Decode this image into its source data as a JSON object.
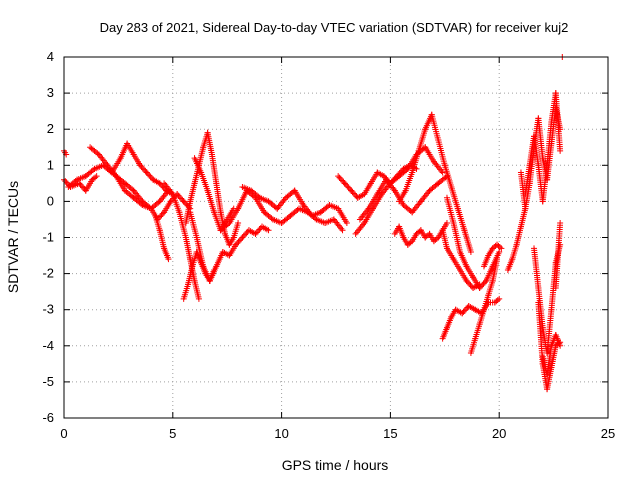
{
  "chart_data": {
    "type": "scatter",
    "title": "Day 283 of 2021, Sidereal Day-to-day VTEC variation (SDTVAR) for receiver kuj2",
    "xlabel": "GPS time / hours",
    "ylabel": "SDTVAR / TECUs",
    "xlim": [
      0,
      25
    ],
    "ylim": [
      -6,
      4
    ],
    "xticks": [
      "0",
      "5",
      "10",
      "15",
      "20",
      "25"
    ],
    "yticks": [
      "4",
      "3",
      "2",
      "1",
      "0",
      "-1",
      "-2",
      "-3",
      "-4",
      "-5",
      "-6"
    ],
    "grid": true,
    "marker": "+",
    "series": [
      {
        "name": "SDTVAR",
        "color": "#ff0000",
        "tracks": [
          {
            "x": [
              0.0,
              0.1
            ],
            "y": [
              1.4,
              1.3
            ]
          },
          {
            "x": [
              0.0,
              0.3,
              0.7,
              1.0,
              1.3,
              1.5
            ],
            "y": [
              0.6,
              0.4,
              0.5,
              0.3,
              0.6,
              0.7
            ]
          },
          {
            "x": [
              0.2,
              0.6,
              1.0,
              1.4,
              1.8,
              2.2,
              2.6,
              2.9,
              3.2,
              3.5,
              3.8,
              4.1,
              4.4,
              4.7,
              5.0
            ],
            "y": [
              0.4,
              0.6,
              0.7,
              0.9,
              1.0,
              0.8,
              1.2,
              1.6,
              1.3,
              1.0,
              0.8,
              0.6,
              0.5,
              0.3,
              0.2
            ]
          },
          {
            "x": [
              1.2,
              1.6,
              2.0,
              2.4,
              2.8,
              3.2,
              3.6,
              4.0,
              4.3,
              4.6,
              4.9,
              5.2,
              5.5,
              5.8
            ],
            "y": [
              1.5,
              1.3,
              1.0,
              0.7,
              0.5,
              0.3,
              0.0,
              -0.2,
              -0.5,
              -0.3,
              0.0,
              0.2,
              0.0,
              -0.2
            ]
          },
          {
            "x": [
              2.0,
              2.4,
              2.8,
              3.2,
              3.6,
              4.0,
              4.4,
              4.8
            ],
            "y": [
              0.9,
              0.7,
              0.3,
              0.1,
              -0.1,
              -0.2,
              0.0,
              0.3
            ]
          },
          {
            "x": [
              4.2,
              4.4,
              4.6,
              4.8
            ],
            "y": [
              -0.4,
              -0.8,
              -1.3,
              -1.6
            ]
          },
          {
            "x": [
              4.6,
              5.0,
              5.3,
              5.6,
              5.8,
              6.0,
              6.2
            ],
            "y": [
              0.5,
              0.2,
              -0.3,
              -1.0,
              -1.6,
              -2.2,
              -2.7
            ]
          },
          {
            "x": [
              5.5,
              5.7,
              5.9,
              6.1,
              6.3,
              6.5,
              6.7,
              6.9
            ],
            "y": [
              -2.7,
              -2.3,
              -1.8,
              -1.4,
              -1.7,
              -2.0,
              -2.2,
              -1.9
            ]
          },
          {
            "x": [
              5.6,
              5.8,
              6.0,
              6.2,
              6.4,
              6.6,
              6.8,
              7.0,
              7.2,
              7.4,
              7.6,
              7.8,
              8.0
            ],
            "y": [
              -0.6,
              0.0,
              0.5,
              1.0,
              1.5,
              1.9,
              1.3,
              0.5,
              -0.3,
              -0.9,
              -1.2,
              -1.0,
              -0.6
            ]
          },
          {
            "x": [
              5.8,
              6.1,
              6.4,
              6.7,
              7.0,
              7.3,
              7.6,
              7.9,
              8.2,
              8.5,
              8.8,
              9.1,
              9.4
            ],
            "y": [
              -0.3,
              -1.0,
              -1.8,
              -2.2,
              -1.8,
              -1.4,
              -1.5,
              -1.2,
              -1.0,
              -0.8,
              -0.9,
              -0.7,
              -0.8
            ]
          },
          {
            "x": [
              6.0,
              6.3,
              6.6,
              6.9,
              7.2,
              7.5,
              7.8
            ],
            "y": [
              1.2,
              0.8,
              0.3,
              -0.3,
              -0.8,
              -0.5,
              -0.2
            ]
          },
          {
            "x": [
              7.2,
              7.6,
              8.0,
              8.4,
              8.8,
              9.2,
              9.6,
              10.0,
              10.4,
              10.8,
              11.2,
              11.6,
              12.0,
              12.4,
              12.8
            ],
            "y": [
              -0.8,
              -0.6,
              -0.2,
              0.3,
              0.1,
              -0.3,
              -0.5,
              -0.6,
              -0.4,
              -0.2,
              -0.3,
              -0.5,
              -0.6,
              -0.5,
              -0.8
            ]
          },
          {
            "x": [
              8.2,
              8.6,
              9.0,
              9.4,
              9.8,
              10.2,
              10.6,
              11.0,
              11.4,
              11.8,
              12.2,
              12.6,
              13.0
            ],
            "y": [
              0.4,
              0.3,
              0.1,
              0.0,
              -0.2,
              0.1,
              0.3,
              -0.1,
              -0.4,
              -0.3,
              -0.1,
              -0.2,
              -0.6
            ]
          },
          {
            "x": [
              12.6,
              12.9,
              13.2,
              13.5,
              13.8,
              14.1,
              14.4,
              14.7,
              15.0,
              15.3,
              15.6,
              15.9,
              16.2
            ],
            "y": [
              0.7,
              0.5,
              0.3,
              0.1,
              0.2,
              0.5,
              0.8,
              0.7,
              0.5,
              0.7,
              0.9,
              1.0,
              0.9
            ]
          },
          {
            "x": [
              13.4,
              13.8,
              14.2,
              14.6,
              15.0,
              15.4,
              15.8,
              16.2,
              16.6,
              17.0,
              17.4
            ],
            "y": [
              -0.9,
              -0.6,
              -0.2,
              0.2,
              0.5,
              0.7,
              0.9,
              1.3,
              1.5,
              1.1,
              0.8
            ]
          },
          {
            "x": [
              13.6,
              14.0,
              14.4,
              14.8,
              15.2,
              15.6,
              16.0,
              16.4,
              16.8,
              17.2,
              17.6
            ],
            "y": [
              -0.5,
              -0.2,
              0.2,
              0.6,
              0.3,
              -0.1,
              -0.3,
              0.0,
              0.3,
              0.5,
              0.7
            ]
          },
          {
            "x": [
              15.2,
              15.4,
              15.6,
              15.8,
              16.0,
              16.2,
              16.4,
              16.6,
              16.8,
              17.0,
              17.2,
              17.4,
              17.6
            ],
            "y": [
              -0.9,
              -0.7,
              -1.0,
              -1.2,
              -1.1,
              -0.9,
              -0.8,
              -1.0,
              -0.9,
              -1.1,
              -1.0,
              -0.8,
              -0.6
            ]
          },
          {
            "x": [
              15.4,
              15.7,
              16.0,
              16.3,
              16.6,
              16.9,
              17.2,
              17.5,
              17.8,
              18.1,
              18.4,
              18.7
            ],
            "y": [
              0.0,
              0.3,
              0.8,
              1.4,
              2.0,
              2.4,
              1.7,
              1.0,
              0.4,
              -0.2,
              -0.8,
              -1.4
            ]
          },
          {
            "x": [
              17.6,
              17.9,
              18.2,
              18.5,
              18.8,
              19.1,
              19.4,
              19.7,
              20.0
            ],
            "y": [
              0.1,
              -0.6,
              -1.4,
              -1.8,
              -2.1,
              -2.4,
              -2.2,
              -1.8,
              -1.4
            ]
          },
          {
            "x": [
              17.4,
              17.6,
              17.9,
              18.2,
              18.5,
              18.8,
              19.1
            ],
            "y": [
              -0.8,
              -1.3,
              -1.6,
              -1.9,
              -2.2,
              -2.4,
              -2.3
            ]
          },
          {
            "x": [
              17.4,
              17.6,
              17.8,
              18.0,
              18.3,
              18.6,
              18.9,
              19.2,
              19.5,
              19.8,
              20.0
            ],
            "y": [
              -3.8,
              -3.5,
              -3.2,
              -3.0,
              -3.1,
              -2.9,
              -3.0,
              -3.1,
              -2.8,
              -2.8,
              -2.7
            ]
          },
          {
            "x": [
              18.7,
              18.9,
              19.1,
              19.3,
              19.5,
              19.7,
              19.9
            ],
            "y": [
              -4.2,
              -3.8,
              -3.4,
              -3.0,
              -2.6,
              -2.2,
              -1.6
            ]
          },
          {
            "x": [
              19.3,
              19.5,
              19.7,
              19.9,
              20.1
            ],
            "y": [
              -1.8,
              -1.5,
              -1.3,
              -1.2,
              -1.3
            ]
          },
          {
            "x": [
              20.4,
              20.6,
              20.8,
              21.0,
              21.2
            ],
            "y": [
              -1.9,
              -1.6,
              -1.2,
              -0.7,
              -0.2
            ]
          },
          {
            "x": [
              21.0,
              21.2,
              21.4,
              21.6,
              21.8,
              22.0,
              22.2,
              22.4,
              22.6,
              22.8
            ],
            "y": [
              0.8,
              -0.2,
              0.5,
              1.5,
              2.3,
              1.2,
              0.6,
              1.6,
              2.6,
              2.0
            ]
          },
          {
            "x": [
              21.2,
              21.4,
              21.6,
              21.8,
              22.0,
              22.2,
              22.4,
              22.6,
              22.8
            ],
            "y": [
              0.2,
              1.0,
              1.8,
              1.0,
              0.0,
              1.0,
              2.2,
              3.0,
              1.4
            ]
          },
          {
            "x": [
              21.6,
              21.8,
              22.0,
              22.2,
              22.4,
              22.6,
              22.8
            ],
            "y": [
              -1.3,
              -2.4,
              -3.5,
              -4.2,
              -3.0,
              -1.7,
              -1.2
            ]
          },
          {
            "x": [
              21.8,
              22.0,
              22.2,
              22.4,
              22.6,
              22.8
            ],
            "y": [
              -2.8,
              -4.5,
              -5.2,
              -4.6,
              -4.0,
              -3.9
            ]
          },
          {
            "x": [
              22.0,
              22.2,
              22.4,
              22.6,
              22.8
            ],
            "y": [
              -4.3,
              -4.8,
              -4.0,
              -3.7,
              -4.0
            ]
          },
          {
            "x": [
              22.6,
              22.8
            ],
            "y": [
              -2.4,
              -0.6
            ]
          },
          {
            "x": [
              22.9
            ],
            "y": [
              4.0
            ]
          }
        ]
      }
    ]
  }
}
